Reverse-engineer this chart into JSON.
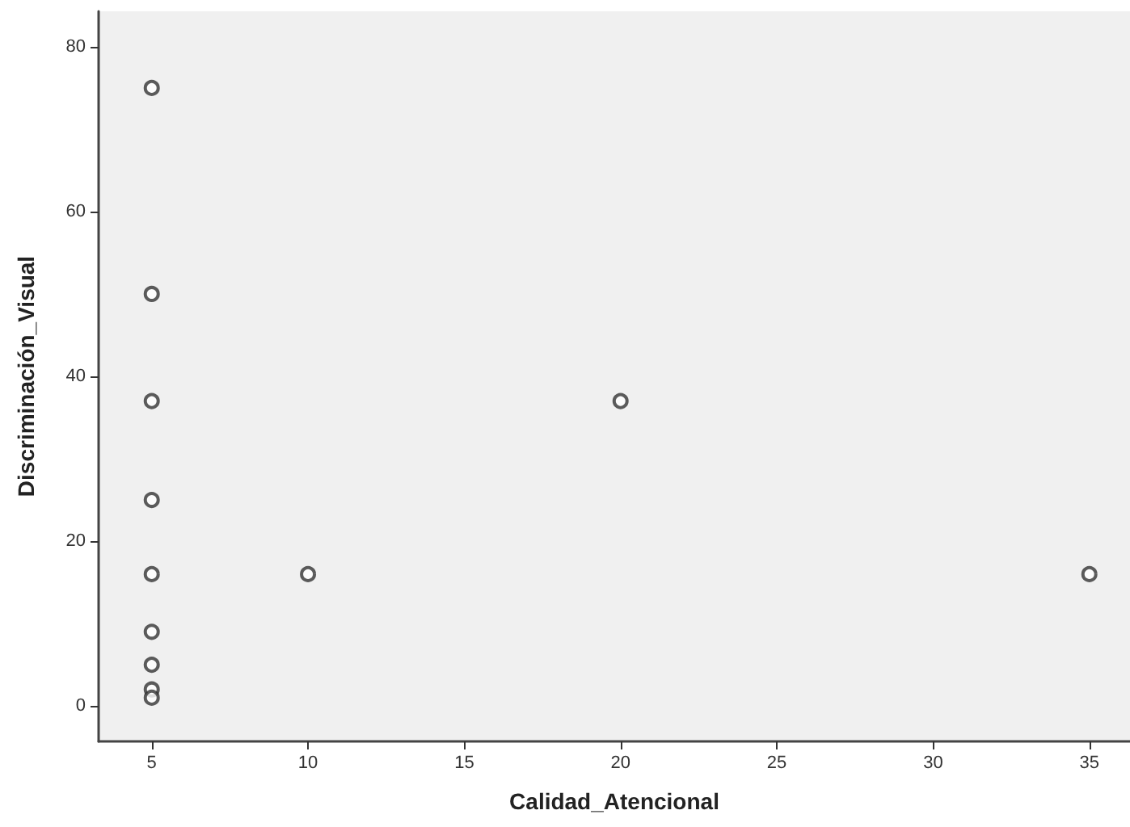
{
  "chart_data": {
    "type": "scatter",
    "xlabel": "Calidad_Atencional",
    "ylabel": "Discriminación_Visual",
    "x": [
      5,
      5,
      5,
      5,
      5,
      5,
      5,
      5,
      5,
      10,
      20,
      35
    ],
    "values": [
      75,
      50,
      37,
      25,
      16,
      9,
      5,
      2,
      1,
      16,
      37,
      16
    ],
    "color": "#333333",
    "marker": "circle",
    "grid": false,
    "xlim": [
      3.3,
      36.3
    ],
    "xticks": [
      5,
      10,
      15,
      20,
      25,
      30,
      35
    ],
    "ylim": [
      -4.3,
      84.3
    ],
    "yticks": [
      0,
      20,
      40,
      60,
      80
    ]
  }
}
